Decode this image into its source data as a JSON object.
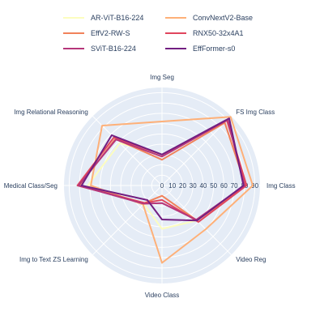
{
  "chart_data": {
    "type": "radar",
    "axes": [
      "Img Seg",
      "FS Img Class",
      "Img Class",
      "Video Reg",
      "Video Class",
      "Img to Text ZS Learning",
      "Medical Class/Seg",
      "Img Relational Reasoning"
    ],
    "radial_range": [
      0,
      95
    ],
    "radial_ticks": [
      0,
      10,
      20,
      30,
      40,
      50,
      60,
      70,
      80,
      90
    ],
    "grid": true,
    "legend_position": "top",
    "series": [
      {
        "name": "AR-ViT-B16-224",
        "color": "#fcfdbf",
        "values": [
          30,
          90,
          80,
          48,
          42,
          25,
          72,
          58
        ]
      },
      {
        "name": "ConvNextV2-Base",
        "color": "#feb078",
        "values": [
          62,
          94,
          88,
          60,
          75,
          26,
          69,
          82
        ]
      },
      {
        "name": "EffV2-RW-S",
        "color": "#f1825a",
        "values": [
          25,
          86,
          81,
          48,
          10,
          24,
          80,
          64
        ]
      },
      {
        "name": "RNX50-32x4A1",
        "color": "#e0455d",
        "values": [
          30,
          89,
          82,
          50,
          14,
          24,
          82,
          66
        ]
      },
      {
        "name": "SViT-B16-224",
        "color": "#b5367a",
        "values": [
          28,
          90,
          80,
          47,
          17,
          25,
          81,
          63
        ]
      },
      {
        "name": "EffFormer-s0",
        "color": "#721f81",
        "values": [
          30,
          92,
          79,
          48,
          33,
          20,
          78,
          69
        ]
      }
    ]
  }
}
